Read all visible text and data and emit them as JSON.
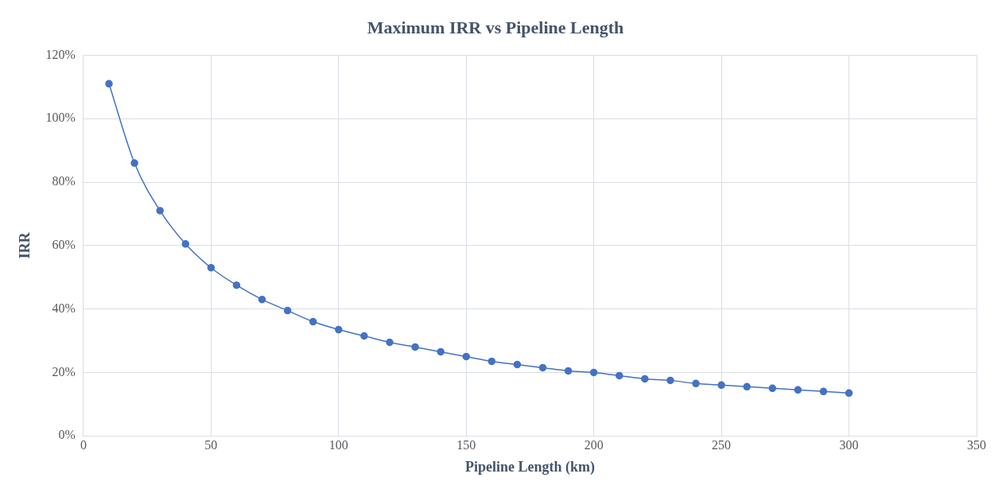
{
  "chart_data": {
    "type": "line",
    "title": "Maximum IRR vs Pipeline Length",
    "xlabel": "Pipeline Length (km)",
    "ylabel": "IRR",
    "x": [
      10,
      20,
      30,
      40,
      50,
      60,
      70,
      80,
      90,
      100,
      110,
      120,
      130,
      140,
      150,
      160,
      170,
      180,
      190,
      200,
      210,
      220,
      230,
      240,
      250,
      260,
      270,
      280,
      290,
      300
    ],
    "series": [
      {
        "color": "#4472c4",
        "values": [
          111,
          86,
          71,
          60.5,
          53,
          47.5,
          43,
          39.5,
          36,
          33.5,
          31.5,
          29.5,
          28,
          26.5,
          25,
          23.5,
          22.5,
          21.5,
          20.5,
          20,
          19,
          18,
          17.5,
          16.5,
          16,
          15.5,
          15,
          14.5,
          14,
          13.5
        ]
      }
    ],
    "xlim": [
      0,
      350
    ],
    "xticks": [
      0,
      50,
      100,
      150,
      200,
      250,
      300,
      350
    ],
    "ylim": [
      0,
      120
    ],
    "yticks": [
      {
        "value": 0,
        "label": "0%"
      },
      {
        "value": 20,
        "label": "20%"
      },
      {
        "value": 40,
        "label": "40%"
      },
      {
        "value": 60,
        "label": "60%"
      },
      {
        "value": 80,
        "label": "80%"
      },
      {
        "value": 100,
        "label": "100%"
      },
      {
        "value": 120,
        "label": "120%"
      }
    ],
    "grid": true,
    "legend": false,
    "marker": "circle",
    "line_style": "solid"
  }
}
